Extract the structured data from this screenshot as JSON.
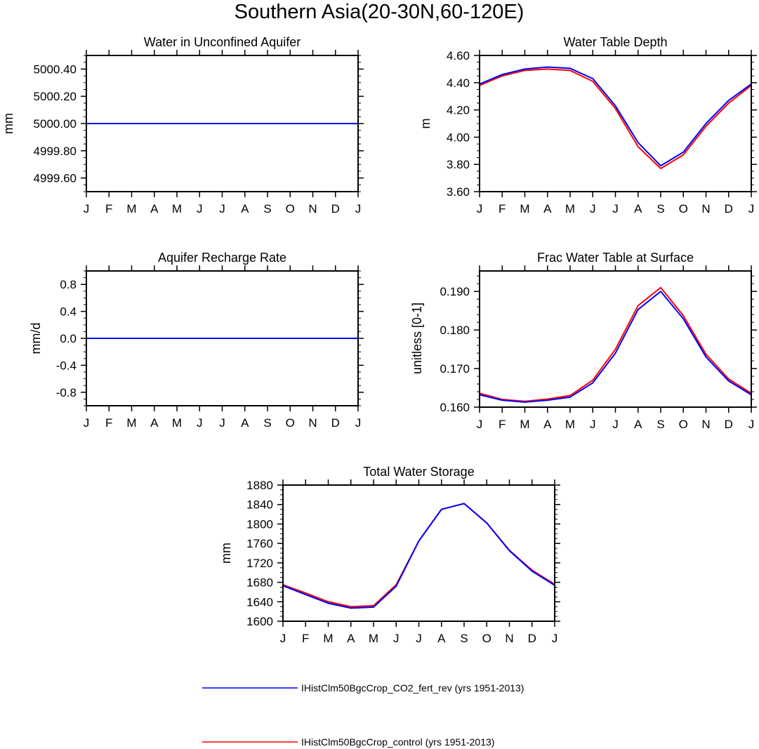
{
  "figure": {
    "title": "Southern Asia(20-30N,60-120E)"
  },
  "colors": {
    "series_blue": "#0000ff",
    "series_red": "#ff0000"
  },
  "legend": {
    "entries": [
      {
        "label": "IHistClm50BgcCrop_CO2_fert_rev (yrs 1951-2013)",
        "color": "#0000ff"
      },
      {
        "label": "IHistClm50BgcCrop_control (yrs 1951-2013)",
        "color": "#ff0000"
      }
    ]
  },
  "chart_data": [
    {
      "id": "water-in-unconfined-aquifer",
      "type": "line",
      "title": "Water in Unconfined Aquifer",
      "ylabel": "mm",
      "categories": [
        "J",
        "F",
        "M",
        "A",
        "M",
        "J",
        "J",
        "A",
        "S",
        "O",
        "N",
        "D",
        "J"
      ],
      "ylim": [
        4999.5,
        5000.5
      ],
      "yticks": [
        "5000.40",
        "5000.20",
        "5000.00",
        "4999.80",
        "4999.60"
      ],
      "ytick_values": [
        5000.4,
        5000.2,
        5000.0,
        4999.8,
        4999.6
      ],
      "minor_step": 0.05,
      "grid": false,
      "series": [
        {
          "color": "#ff0000",
          "values": [
            5000,
            5000,
            5000,
            5000,
            5000,
            5000,
            5000,
            5000,
            5000,
            5000,
            5000,
            5000,
            5000
          ]
        },
        {
          "color": "#0000ff",
          "values": [
            5000,
            5000,
            5000,
            5000,
            5000,
            5000,
            5000,
            5000,
            5000,
            5000,
            5000,
            5000,
            5000
          ]
        }
      ]
    },
    {
      "id": "water-table-depth",
      "type": "line",
      "title": "Water Table Depth",
      "ylabel": "m",
      "categories": [
        "J",
        "F",
        "M",
        "A",
        "M",
        "J",
        "J",
        "A",
        "S",
        "O",
        "N",
        "D",
        "J"
      ],
      "ylim": [
        3.6,
        4.6
      ],
      "yticks": [
        "4.60",
        "4.40",
        "4.20",
        "4.00",
        "3.80",
        "3.60"
      ],
      "ytick_values": [
        4.6,
        4.4,
        4.2,
        4.0,
        3.8,
        3.6
      ],
      "minor_step": 0.05,
      "grid": false,
      "series": [
        {
          "color": "#ff0000",
          "values": [
            4.38,
            4.45,
            4.49,
            4.5,
            4.49,
            4.41,
            4.21,
            3.93,
            3.77,
            3.87,
            4.08,
            4.25,
            4.38
          ]
        },
        {
          "color": "#0000ff",
          "values": [
            4.39,
            4.46,
            4.5,
            4.515,
            4.505,
            4.43,
            4.23,
            3.96,
            3.79,
            3.89,
            4.1,
            4.27,
            4.39
          ]
        }
      ]
    },
    {
      "id": "aquifer-recharge-rate",
      "type": "line",
      "title": "Aquifer Recharge Rate",
      "ylabel": "mm/d",
      "categories": [
        "J",
        "F",
        "M",
        "A",
        "M",
        "J",
        "J",
        "A",
        "S",
        "O",
        "N",
        "D",
        "J"
      ],
      "ylim": [
        -1.0,
        1.0
      ],
      "yticks": [
        "0.8",
        "0.4",
        "0.0",
        "-0.4",
        "-0.8"
      ],
      "ytick_values": [
        0.8,
        0.4,
        0.0,
        -0.4,
        -0.8
      ],
      "minor_step": 0.1,
      "grid": false,
      "series": [
        {
          "color": "#ff0000",
          "values": [
            0,
            0,
            0,
            0,
            0,
            0,
            0,
            0,
            0,
            0,
            0,
            0,
            0
          ]
        },
        {
          "color": "#0000ff",
          "values": [
            0,
            0,
            0,
            0,
            0,
            0,
            0,
            0,
            0,
            0,
            0,
            0,
            0
          ]
        }
      ]
    },
    {
      "id": "frac-water-table-at-surface",
      "type": "line",
      "title": "Frac Water Table at Surface",
      "ylabel": "unitless [0-1]",
      "categories": [
        "J",
        "F",
        "M",
        "A",
        "M",
        "J",
        "J",
        "A",
        "S",
        "O",
        "N",
        "D",
        "J"
      ],
      "ylim": [
        0.16,
        0.1953
      ],
      "yticks": [
        "0.190",
        "0.180",
        "0.170",
        "0.160"
      ],
      "ytick_values": [
        0.19,
        0.18,
        0.17,
        0.16
      ],
      "minor_step": 0.002,
      "grid": false,
      "series": [
        {
          "color": "#ff0000",
          "values": [
            0.1636,
            0.162,
            0.1615,
            0.1621,
            0.163,
            0.167,
            0.175,
            0.1863,
            0.191,
            0.1837,
            0.1737,
            0.1673,
            0.1636
          ]
        },
        {
          "color": "#0000ff",
          "values": [
            0.1632,
            0.1618,
            0.1613,
            0.1618,
            0.1626,
            0.1663,
            0.174,
            0.1853,
            0.19,
            0.1829,
            0.173,
            0.1668,
            0.1632
          ]
        }
      ]
    },
    {
      "id": "total-water-storage",
      "type": "line",
      "title": "Total Water Storage",
      "ylabel": "mm",
      "categories": [
        "J",
        "F",
        "M",
        "A",
        "M",
        "J",
        "J",
        "A",
        "S",
        "O",
        "N",
        "D",
        "J"
      ],
      "ylim": [
        1600,
        1880
      ],
      "yticks": [
        "1880",
        "1840",
        "1800",
        "1760",
        "1720",
        "1680",
        "1640",
        "1600"
      ],
      "ytick_values": [
        1880,
        1840,
        1800,
        1760,
        1720,
        1680,
        1640,
        1600
      ],
      "minor_step": 10,
      "grid": false,
      "series": [
        {
          "color": "#ff0000",
          "values": [
            1675,
            1658,
            1640,
            1630,
            1632,
            1675,
            1765,
            1830,
            1842,
            1802,
            1746,
            1705,
            1676
          ]
        },
        {
          "color": "#0000ff",
          "values": [
            1673,
            1655,
            1637,
            1627,
            1629,
            1672,
            1765,
            1830,
            1842,
            1802,
            1745,
            1703,
            1674
          ]
        }
      ]
    }
  ]
}
